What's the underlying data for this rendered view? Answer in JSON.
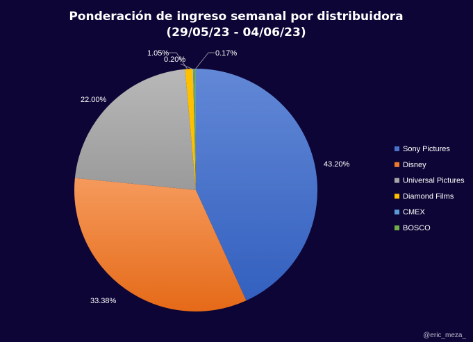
{
  "chart_data": {
    "type": "pie",
    "title": "Ponderación de ingreso semanal por distribuidora",
    "subtitle": "(29/05/23 - 04/06/23)",
    "categories": [
      "Sony Pictures",
      "Disney",
      "Universal Pictures",
      "Diamond Films",
      "CMEX",
      "BOSCO"
    ],
    "values": [
      43.2,
      33.38,
      22.0,
      1.05,
      0.2,
      0.17
    ],
    "data_labels": [
      "43.20%",
      "33.38%",
      "22.00%",
      "1.05%",
      "0.20%",
      "0.17%"
    ],
    "colors": [
      "#4a72c8",
      "#ee7a2c",
      "#a5a5a5",
      "#ffc000",
      "#5b9bd5",
      "#70ad47"
    ],
    "legend_position": "right",
    "start_angle": "top, clockwise"
  },
  "watermark": "@eric_meza_"
}
